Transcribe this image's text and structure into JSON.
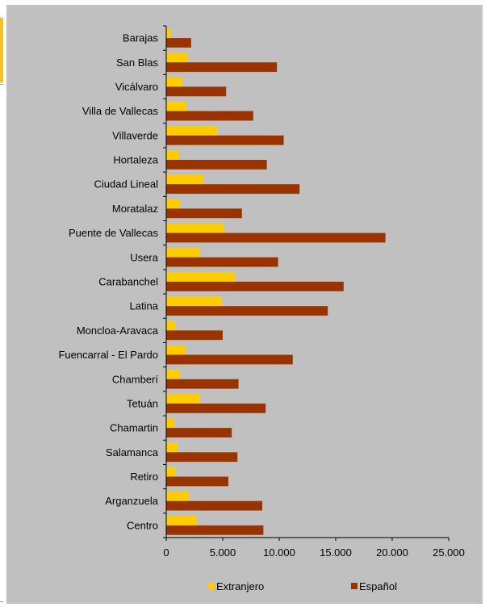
{
  "chart_data": {
    "type": "bar",
    "orientation": "horizontal",
    "title": "",
    "xlabel": "",
    "ylabel": "",
    "categories": [
      "Barajas",
      "San Blas",
      "Vicálvaro",
      "Villa de Vallecas",
      "Villaverde",
      "Hortaleza",
      "Ciudad Lineal",
      "Moratalaz",
      "Puente de Vallecas",
      "Usera",
      "Carabanchel",
      "Latina",
      "Moncloa-Aravaca",
      "Fuencarral - El Pardo",
      "Chamberí",
      "Tetuán",
      "Chamartin",
      "Salamanca",
      "Retiro",
      "Arganzuela",
      "Centro"
    ],
    "series": [
      {
        "name": "Extranjero",
        "color": "#ffcc00",
        "values": [
          400,
          1900,
          1400,
          1800,
          4500,
          1100,
          3300,
          1200,
          5100,
          3000,
          6100,
          4900,
          800,
          1700,
          1200,
          3000,
          700,
          1000,
          800,
          2000,
          2700
        ]
      },
      {
        "name": "Español",
        "color": "#993300",
        "values": [
          2200,
          9800,
          5300,
          7700,
          10400,
          8900,
          11800,
          6700,
          19400,
          9900,
          15700,
          14300,
          5000,
          11200,
          6400,
          8800,
          5800,
          6300,
          5500,
          8500,
          8600
        ]
      }
    ],
    "xlim": [
      0,
      25000
    ],
    "ticks": [
      0,
      5000,
      10000,
      15000,
      20000,
      25000
    ],
    "tick_labels": [
      "0",
      "5.000",
      "10.000",
      "15.000",
      "20.000",
      "25.000"
    ],
    "grid": false,
    "legend": "bottom"
  }
}
